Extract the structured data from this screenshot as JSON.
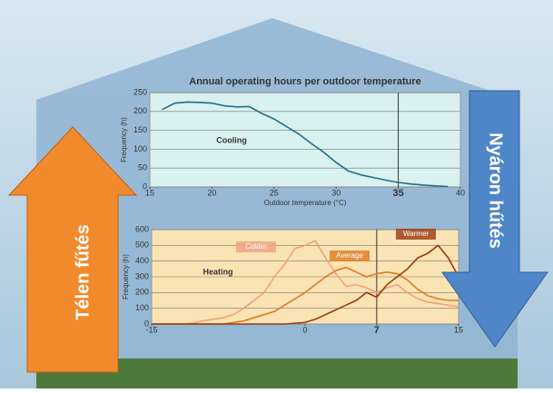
{
  "chart_data": [
    {
      "type": "line",
      "title": "Annual operating hours per outdoor temperature",
      "xlabel": "Outdoor temperature (°C)",
      "ylabel": "Frequency (h)",
      "x": [
        16,
        17,
        18,
        19,
        20,
        21,
        22,
        23,
        24,
        25,
        26,
        27,
        28,
        29,
        30,
        31,
        32,
        33,
        34,
        35,
        36,
        37,
        38,
        39
      ],
      "series": [
        {
          "name": "Cooling",
          "color": "#1f6f86",
          "values": [
            205,
            222,
            225,
            224,
            222,
            215,
            212,
            213,
            195,
            180,
            160,
            140,
            115,
            92,
            65,
            42,
            32,
            25,
            18,
            12,
            8,
            5,
            3,
            1
          ]
        }
      ],
      "xlim": [
        15,
        40
      ],
      "ylim": [
        0,
        250
      ],
      "xticks": [
        15,
        20,
        25,
        30,
        35,
        40
      ],
      "yticks": [
        0,
        50,
        100,
        150,
        200,
        250
      ],
      "grid": true,
      "highlight_x": 35,
      "background": "#d9f1ef"
    },
    {
      "type": "line",
      "ylabel": "Frequency (h)",
      "annotation": "Heating",
      "x": [
        -15,
        -14,
        -13,
        -12,
        -11,
        -10,
        -9,
        -8,
        -7,
        -6,
        -5,
        -4,
        -3,
        -2,
        -1,
        0,
        1,
        2,
        3,
        4,
        5,
        6,
        7,
        8,
        9,
        10,
        11,
        12,
        13,
        14,
        15
      ],
      "series": [
        {
          "name": "Colder",
          "color": "#f0a080",
          "values": [
            0,
            0,
            0,
            0,
            5,
            20,
            30,
            40,
            60,
            100,
            150,
            200,
            300,
            380,
            480,
            500,
            530,
            420,
            320,
            240,
            250,
            230,
            200,
            230,
            250,
            200,
            160,
            140,
            130,
            120,
            110
          ]
        },
        {
          "name": "Average",
          "color": "#e07820",
          "values": [
            0,
            0,
            0,
            0,
            0,
            0,
            0,
            0,
            10,
            20,
            40,
            60,
            80,
            120,
            160,
            200,
            250,
            300,
            340,
            360,
            330,
            300,
            320,
            330,
            320,
            280,
            220,
            180,
            160,
            150,
            150
          ]
        },
        {
          "name": "Warmer",
          "color": "#9a3a10",
          "values": [
            0,
            0,
            0,
            0,
            0,
            0,
            0,
            0,
            0,
            0,
            0,
            0,
            0,
            0,
            5,
            10,
            30,
            60,
            90,
            120,
            150,
            200,
            170,
            250,
            300,
            350,
            420,
            450,
            500,
            420,
            300
          ]
        }
      ],
      "xlim": [
        -15,
        15
      ],
      "ylim": [
        0,
        600
      ],
      "xticks": [
        -15,
        0,
        7,
        15
      ],
      "yticks": [
        0,
        100,
        200,
        300,
        400,
        500,
        600
      ],
      "grid": true,
      "highlight_x": 7,
      "background": "#fbe4b4"
    }
  ],
  "arrows": [
    "Télen fűtés",
    "Nyáron hűtés"
  ]
}
